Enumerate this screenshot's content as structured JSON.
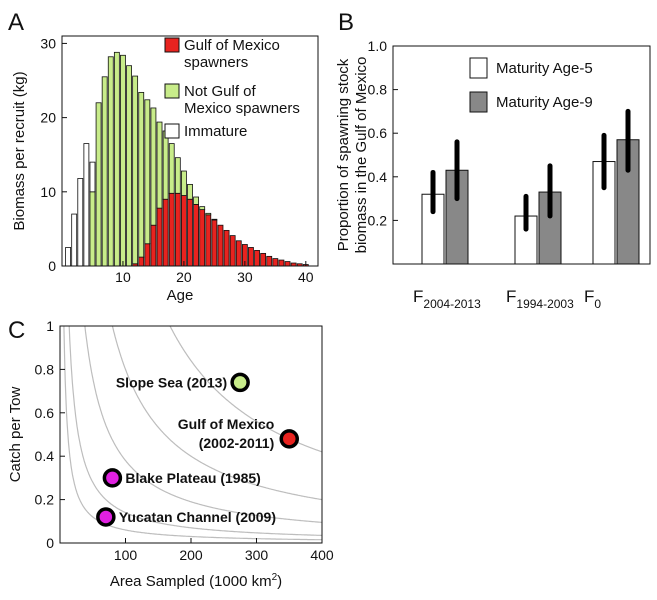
{
  "chart_data": [
    {
      "panel": "A",
      "type": "bar",
      "stacked": true,
      "xlabel": "Age",
      "ylabel": "Biomass per recruit (kg)",
      "xlim": [
        0,
        42
      ],
      "ylim": [
        0,
        31
      ],
      "xticks": [
        10,
        20,
        30,
        40
      ],
      "yticks": [
        0,
        10,
        20,
        30
      ],
      "x": [
        1,
        2,
        3,
        4,
        5,
        6,
        7,
        8,
        9,
        10,
        11,
        12,
        13,
        14,
        15,
        16,
        17,
        18,
        19,
        20,
        21,
        22,
        23,
        24,
        25,
        26,
        27,
        28,
        29,
        30,
        31,
        32,
        33,
        34,
        35,
        36,
        37,
        38,
        39,
        40
      ],
      "series": [
        {
          "name": "Gulf of Mexico spawners",
          "color": "#e8231f",
          "values": [
            0,
            0,
            0,
            0,
            0,
            0,
            0,
            0,
            0,
            0,
            0,
            0.3,
            1.2,
            3.0,
            5.5,
            7.8,
            9.0,
            9.8,
            9.8,
            9.5,
            9.0,
            8.3,
            7.6,
            6.9,
            6.2,
            5.5,
            4.8,
            4.1,
            3.4,
            2.9,
            2.5,
            2.1,
            1.7,
            1.3,
            1.0,
            0.8,
            0.6,
            0.4,
            0.3,
            0.2
          ]
        },
        {
          "name": "Not Gulf of Mexico spawners",
          "color": "#c8ec8a",
          "values": [
            0,
            0,
            0,
            0,
            10.0,
            22.0,
            25.5,
            28.2,
            28.8,
            28.4,
            27.0,
            25.3,
            22.2,
            19.4,
            15.8,
            11.6,
            9.2,
            6.7,
            4.8,
            3.3,
            2.0,
            1.0,
            0.4,
            0.2,
            0.1,
            0,
            0,
            0,
            0,
            0,
            0,
            0,
            0,
            0,
            0,
            0,
            0,
            0,
            0,
            0
          ]
        },
        {
          "name": "Immature",
          "color": "#ffffff",
          "values": [
            2.5,
            7.0,
            11.8,
            16.5,
            4.0,
            0,
            0,
            0,
            0,
            0,
            0,
            0,
            0,
            0,
            0,
            0,
            0,
            0,
            0,
            0,
            0,
            0,
            0,
            0,
            0,
            0,
            0,
            0,
            0,
            0,
            0,
            0,
            0,
            0,
            0,
            0,
            0,
            0,
            0,
            0
          ]
        }
      ],
      "legend_placement": "top-right"
    },
    {
      "panel": "B",
      "type": "bar",
      "ylabel_lines": [
        "Proportion of spawning stock",
        "biomass in the Gulf of Mexico"
      ],
      "ylim": [
        0,
        1
      ],
      "yticks": [
        0.2,
        0.4,
        0.6,
        0.8,
        1.0
      ],
      "categories": [
        {
          "base": "F",
          "sub": "2004-2013"
        },
        {
          "base": "F",
          "sub": "1994-2003"
        },
        {
          "base": "F",
          "sub": "0"
        }
      ],
      "series": [
        {
          "name": "Maturity Age-5",
          "color": "#ffffff",
          "values": [
            0.32,
            0.22,
            0.47
          ],
          "err_low": [
            0.24,
            0.16,
            0.35
          ],
          "err_high": [
            0.42,
            0.31,
            0.59
          ]
        },
        {
          "name": "Maturity Age-9",
          "color": "#888888",
          "values": [
            0.43,
            0.33,
            0.57
          ],
          "err_low": [
            0.3,
            0.22,
            0.43
          ],
          "err_high": [
            0.56,
            0.45,
            0.7
          ]
        }
      ],
      "legend_placement": "top"
    },
    {
      "panel": "C",
      "type": "scatter",
      "xlabel_main": "Area Sampled (1000 km",
      "xlabel_sup": "2",
      "xlabel_end": ")",
      "ylabel": "Catch per Tow",
      "xlim": [
        0,
        400
      ],
      "ylim": [
        0,
        1
      ],
      "xticks": [
        100,
        200,
        300,
        400
      ],
      "yticks": [
        0,
        0.2,
        0.4,
        0.6,
        0.8,
        1
      ],
      "grid": false,
      "isocurve_products": [
        6,
        14,
        38,
        80,
        168
      ],
      "points": [
        {
          "label": "Slope Sea (2013)",
          "x": 275,
          "y": 0.74,
          "color": "#c8ec8a"
        },
        {
          "label": "Gulf of Mexico",
          "label2": "(2002-2011)",
          "x": 350,
          "y": 0.48,
          "color": "#e8231f"
        },
        {
          "label": "Blake Plateau (1985)",
          "x": 80,
          "y": 0.3,
          "color": "#e020e0"
        },
        {
          "label": "Yucatan Channel (2009)",
          "x": 70,
          "y": 0.12,
          "color": "#e020e0"
        }
      ]
    }
  ],
  "panels": [
    "A",
    "B",
    "C"
  ]
}
